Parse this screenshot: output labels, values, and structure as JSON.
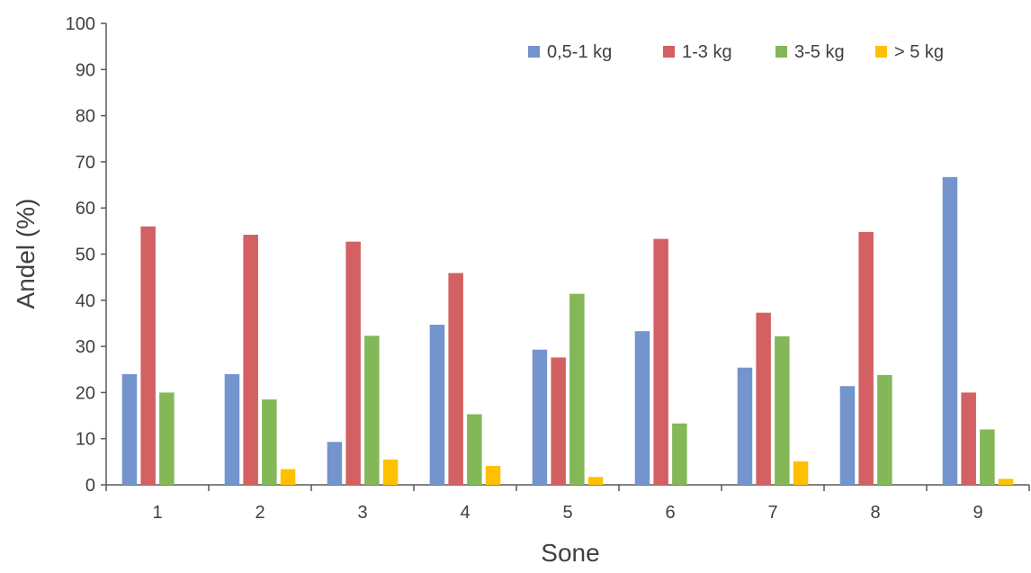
{
  "chart_data": {
    "type": "bar",
    "title": "",
    "xlabel": "Sone",
    "ylabel": "Andel (%)",
    "ylim": [
      0,
      100
    ],
    "yticks": [
      0,
      10,
      20,
      30,
      40,
      50,
      60,
      70,
      80,
      90,
      100
    ],
    "grid": false,
    "legend_position": "top-right",
    "categories": [
      "1",
      "2",
      "3",
      "4",
      "5",
      "6",
      "7",
      "8",
      "9"
    ],
    "series": [
      {
        "name": "0,5-1 kg",
        "color": "#7394CC",
        "values": [
          24.0,
          24.0,
          9.3,
          34.7,
          29.3,
          33.3,
          25.4,
          21.4,
          66.7
        ]
      },
      {
        "name": "1-3 kg",
        "color": "#D36062",
        "values": [
          56.0,
          54.2,
          52.7,
          45.9,
          27.6,
          53.3,
          37.3,
          54.8,
          20.0
        ]
      },
      {
        "name": "3-5 kg",
        "color": "#83B758",
        "values": [
          20.0,
          18.5,
          32.3,
          15.3,
          41.4,
          13.3,
          32.2,
          23.8,
          12.0
        ]
      },
      {
        "name": "> 5 kg",
        "color": "#FFC000",
        "values": [
          0,
          3.4,
          5.5,
          4.1,
          1.7,
          0,
          5.1,
          0,
          1.3
        ]
      }
    ]
  }
}
